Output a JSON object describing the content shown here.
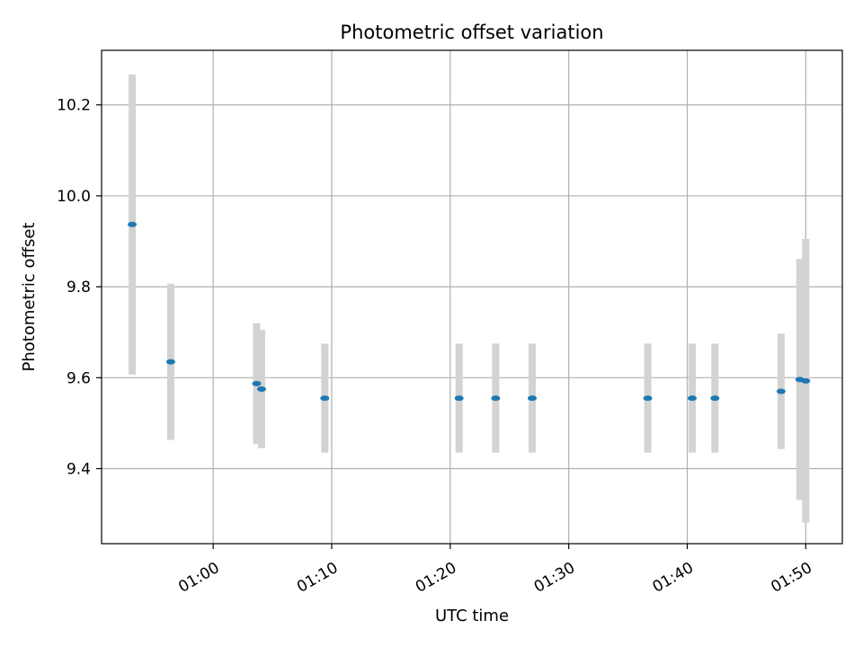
{
  "chart_data": {
    "type": "scatter",
    "title": "Photometric offset variation",
    "xlabel": "UTC time",
    "ylabel": "Photometric offset",
    "x_axis_type": "time",
    "xlim": [
      "00:50:35",
      "01:53:05"
    ],
    "ylim": [
      9.235,
      10.32
    ],
    "x_ticks": [
      "01:00",
      "01:10",
      "01:20",
      "01:30",
      "01:40",
      "01:50"
    ],
    "y_ticks": [
      9.4,
      9.6,
      9.8,
      10.0,
      10.2
    ],
    "y_tick_labels": [
      "9.4",
      "9.6",
      "9.8",
      "10.0",
      "10.2"
    ],
    "x_tick_rotation_deg": 30,
    "grid": true,
    "legend": "none",
    "colors": {
      "points": "#1f77b4",
      "error_bars": "#d3d3d3",
      "grid": "#b0b0b0"
    },
    "series": [
      {
        "points": [
          {
            "x": "00:53:10",
            "y": 9.937,
            "yerr": 0.33
          },
          {
            "x": "00:56:25",
            "y": 9.635,
            "yerr": 0.172
          },
          {
            "x": "01:03:40",
            "y": 9.587,
            "yerr": 0.133
          },
          {
            "x": "01:04:05",
            "y": 9.575,
            "yerr": 0.13
          },
          {
            "x": "01:09:25",
            "y": 9.555,
            "yerr": 0.12
          },
          {
            "x": "01:20:45",
            "y": 9.555,
            "yerr": 0.12
          },
          {
            "x": "01:23:50",
            "y": 9.555,
            "yerr": 0.12
          },
          {
            "x": "01:26:55",
            "y": 9.555,
            "yerr": 0.12
          },
          {
            "x": "01:36:40",
            "y": 9.555,
            "yerr": 0.12
          },
          {
            "x": "01:40:25",
            "y": 9.555,
            "yerr": 0.12
          },
          {
            "x": "01:42:20",
            "y": 9.555,
            "yerr": 0.12
          },
          {
            "x": "01:47:55",
            "y": 9.57,
            "yerr": 0.127
          },
          {
            "x": "01:49:30",
            "y": 9.596,
            "yerr": 0.265
          },
          {
            "x": "01:50:00",
            "y": 9.593,
            "yerr": 0.312
          }
        ]
      }
    ]
  }
}
